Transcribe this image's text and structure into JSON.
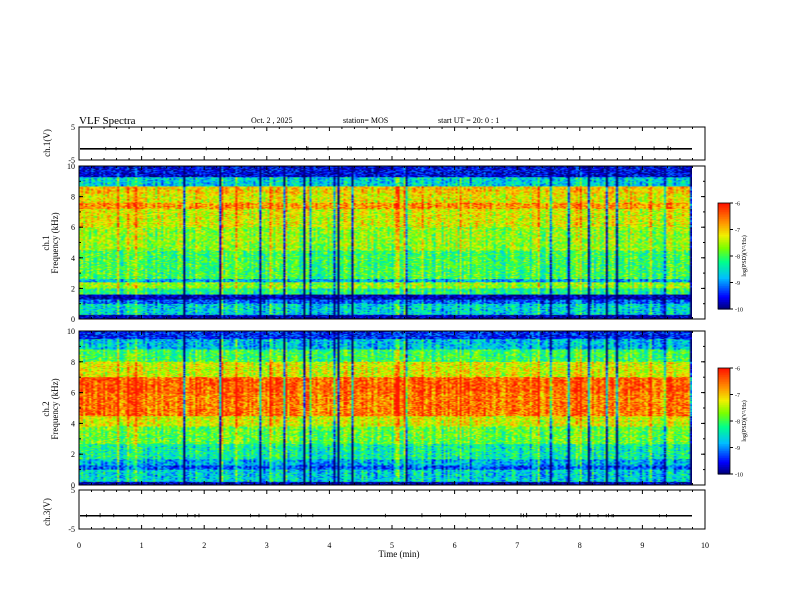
{
  "header": {
    "title": "VLF Spectra",
    "date": "Oct. 2 , 2025",
    "station": "station= MOS",
    "start": "start  UT =   20: 0  : 1"
  },
  "chart_data": [
    {
      "type": "line",
      "panel": "ch1-waveform",
      "ylabel": "ch.1(V)",
      "ylim": [
        -5,
        5
      ],
      "yticks": [
        "5",
        "-5"
      ],
      "xlim": [
        0,
        10
      ],
      "series": [
        {
          "values_note_free": true,
          "level": -1.6
        }
      ]
    },
    {
      "type": "heatmap",
      "panel": "ch1-spectrogram",
      "ylabel": "ch.1\nFrequency (kHz)",
      "ylabel_line1": "ch.1",
      "ylabel_line2": "Frequency (kHz)",
      "ylim": [
        0,
        10
      ],
      "yticks": [
        "0",
        "2",
        "4",
        "6",
        "8",
        "10"
      ],
      "xlim": [
        0,
        9.83
      ],
      "bands": [
        {
          "f": [
            0.0,
            0.3
          ],
          "level": 0.05
        },
        {
          "f": [
            0.3,
            1.0
          ],
          "level": 0.35
        },
        {
          "f": [
            1.0,
            1.3
          ],
          "level": 0.2
        },
        {
          "f": [
            1.3,
            1.6
          ],
          "level": 0.05
        },
        {
          "f": [
            1.6,
            2.0
          ],
          "level": 0.45
        },
        {
          "f": [
            2.0,
            2.4
          ],
          "level": 0.6
        },
        {
          "f": [
            2.4,
            2.6
          ],
          "level": 0.3
        },
        {
          "f": [
            2.6,
            4.5
          ],
          "level": 0.5
        },
        {
          "f": [
            4.5,
            6.0
          ],
          "level": 0.6
        },
        {
          "f": [
            6.0,
            7.2
          ],
          "level": 0.68
        },
        {
          "f": [
            7.2,
            7.6
          ],
          "level": 0.82
        },
        {
          "f": [
            7.6,
            8.2
          ],
          "level": 0.7
        },
        {
          "f": [
            8.2,
            8.7
          ],
          "level": 0.75
        },
        {
          "f": [
            8.7,
            9.3
          ],
          "level": 0.35
        },
        {
          "f": [
            9.3,
            10.0
          ],
          "level": 0.1
        }
      ]
    },
    {
      "type": "heatmap",
      "panel": "ch2-spectrogram",
      "ylabel_line1": "ch.2",
      "ylabel_line2": "Frequency (kHz)",
      "ylim": [
        0,
        10
      ],
      "yticks": [
        "0",
        "2",
        "4",
        "6",
        "8",
        "10"
      ],
      "xlim": [
        0,
        9.83
      ],
      "bands": [
        {
          "f": [
            0.0,
            0.2
          ],
          "level": 0.05
        },
        {
          "f": [
            0.2,
            1.0
          ],
          "level": 0.35
        },
        {
          "f": [
            1.0,
            1.3
          ],
          "level": 0.2
        },
        {
          "f": [
            1.3,
            1.7
          ],
          "level": 0.3
        },
        {
          "f": [
            1.7,
            2.7
          ],
          "level": 0.42
        },
        {
          "f": [
            2.7,
            3.8
          ],
          "level": 0.55
        },
        {
          "f": [
            3.8,
            4.5
          ],
          "level": 0.68
        },
        {
          "f": [
            4.5,
            6.0
          ],
          "level": 0.86
        },
        {
          "f": [
            6.0,
            7.0
          ],
          "level": 0.9
        },
        {
          "f": [
            7.0,
            8.0
          ],
          "level": 0.68
        },
        {
          "f": [
            8.0,
            8.8
          ],
          "level": 0.5
        },
        {
          "f": [
            8.8,
            9.5
          ],
          "level": 0.32
        },
        {
          "f": [
            9.5,
            10.0
          ],
          "level": 0.15
        }
      ]
    },
    {
      "type": "line",
      "panel": "ch3-waveform",
      "ylabel": "ch.3(V)",
      "ylim": [
        -5,
        5
      ],
      "yticks": [
        "5",
        "-5"
      ],
      "xlim": [
        0,
        10
      ],
      "series": [
        {
          "level": -1.6
        }
      ]
    }
  ],
  "xaxis": {
    "xlabel": "Time  (min)",
    "ticks": [
      "0",
      "1",
      "2",
      "3",
      "4",
      "5",
      "6",
      "7",
      "8",
      "9",
      "10"
    ],
    "xlim": [
      0,
      10
    ]
  },
  "colorbar": {
    "label": "log(PSD)(V²/Hz)",
    "ticks": [
      "-6",
      "-7",
      "-8",
      "-9",
      "-10"
    ],
    "range": [
      -10,
      -6
    ]
  },
  "colors": {
    "low": "#00008b",
    "mid": "#00ff7f",
    "high": "#ff0000",
    "axis": "#000000"
  }
}
